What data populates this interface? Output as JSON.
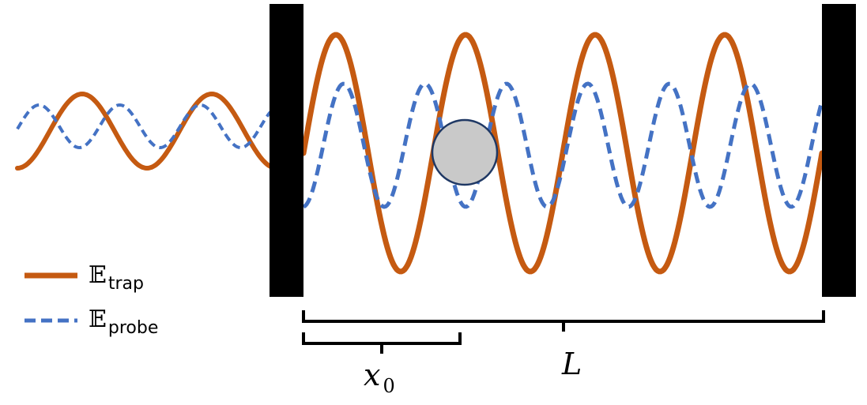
{
  "colors": {
    "trap": "#C55A11",
    "probe": "#4472C4",
    "mirror": "#000000",
    "particle_fill": "#C9C9C9",
    "particle_stroke": "#1F3864",
    "brace": "#000000"
  },
  "legend": {
    "trap": {
      "main": "𝔼",
      "sub": "trap"
    },
    "probe": {
      "main": "𝔼",
      "sub": "probe"
    }
  },
  "labels": {
    "x0": {
      "main": "x",
      "sub": "0"
    },
    "L": "L"
  }
}
